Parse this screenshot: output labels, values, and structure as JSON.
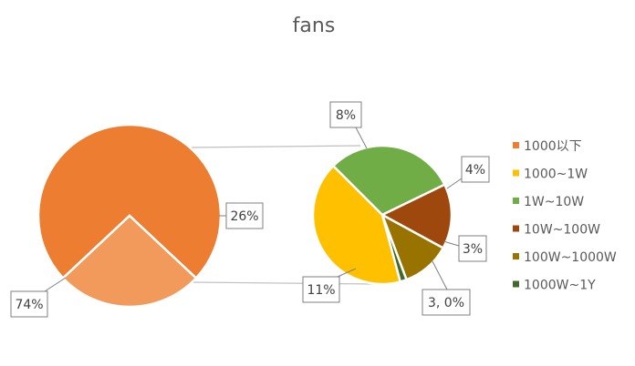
{
  "chart_data": {
    "type": "pie",
    "title": "fans",
    "main_pie": {
      "slices": [
        {
          "label": "74%",
          "value": 74,
          "color": "#ED7D31"
        },
        {
          "label": "26%",
          "value": 26,
          "color": "#F19A5B"
        }
      ]
    },
    "secondary_pie": {
      "slices": [
        {
          "name": "1W~10W",
          "label": "8%",
          "value": 8,
          "color": "#70AD47"
        },
        {
          "name": "10W~100W",
          "label": "4%",
          "value": 4,
          "color": "#9E480E"
        },
        {
          "name": "100W~1000W",
          "label": "3%",
          "value": 3,
          "color": "#997300"
        },
        {
          "name": "1000W~1Y",
          "label": "3, 0%",
          "value": 0.4,
          "color": "#43682B"
        },
        {
          "name": "1000~1W",
          "label": "11%",
          "value": 11,
          "color": "#FFC000"
        }
      ]
    },
    "legend": {
      "position": "right",
      "entries": [
        {
          "name": "1000以下",
          "color": "#ED7D31"
        },
        {
          "name": "1000~1W",
          "color": "#FFC000"
        },
        {
          "name": "1W~10W",
          "color": "#70AD47"
        },
        {
          "name": "10W~100W",
          "color": "#9E480E"
        },
        {
          "name": "100W~1000W",
          "color": "#997300"
        },
        {
          "name": "1000W~1Y",
          "color": "#43682B"
        }
      ]
    }
  }
}
